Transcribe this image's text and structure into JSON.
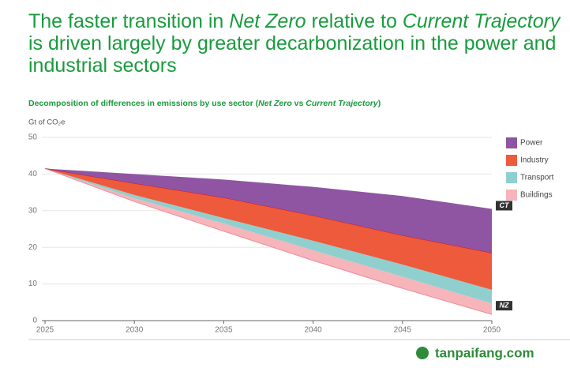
{
  "header": {
    "title_lines": [
      [
        {
          "text": "The faster transition in ",
          "italic": false
        },
        {
          "text": "Net Zero",
          "italic": true
        },
        {
          "text": " relative to ",
          "italic": false
        },
        {
          "text": "Current Trajectory",
          "italic": true
        }
      ],
      [
        {
          "text": "is driven largely by greater decarbonization in the power and",
          "italic": false
        }
      ],
      [
        {
          "text": "industrial sectors",
          "italic": false
        }
      ]
    ]
  },
  "chart_data": {
    "type": "stacked_area",
    "subtitle": [
      {
        "text": "Decomposition of differences in emissions by use sector (",
        "italic": false
      },
      {
        "text": "Net Zero",
        "italic": true
      },
      {
        "text": " vs ",
        "italic": false
      },
      {
        "text": "Current Trajectory",
        "italic": true
      },
      {
        "text": ")",
        "italic": false
      }
    ],
    "y_label": "Gt of CO₂e",
    "x": [
      2025,
      2030,
      2035,
      2040,
      2045,
      2050
    ],
    "xlim": [
      2025,
      2050
    ],
    "xticks": [
      2025,
      2030,
      2035,
      2040,
      2045,
      2050
    ],
    "ylim": [
      0,
      50
    ],
    "yticks": [
      0,
      10,
      20,
      30,
      40,
      50
    ],
    "grid": true,
    "base": {
      "name": "NZ",
      "color": "#333333",
      "values": [
        41.5,
        32.5,
        24.4,
        16.4,
        8.8,
        1.7
      ]
    },
    "top_label": "CT",
    "series": [
      {
        "name": "Power",
        "color": "#8f55a3",
        "values": [
          0,
          2.5,
          4.9,
          7.8,
          10.7,
          12.0
        ]
      },
      {
        "name": "Industry",
        "color": "#ee5a3c",
        "values": [
          0,
          3.2,
          5.6,
          6.9,
          8.0,
          10.1
        ]
      },
      {
        "name": "Transport",
        "color": "#8fd0cf",
        "values": [
          0,
          0.9,
          1.5,
          2.6,
          3.3,
          3.7
        ]
      },
      {
        "name": "Buildings",
        "color": "#f5b5ba",
        "values": [
          0,
          0.9,
          2.1,
          2.8,
          3.2,
          3.0
        ]
      }
    ],
    "legend": "right"
  },
  "watermark": "tanpaifang.com"
}
